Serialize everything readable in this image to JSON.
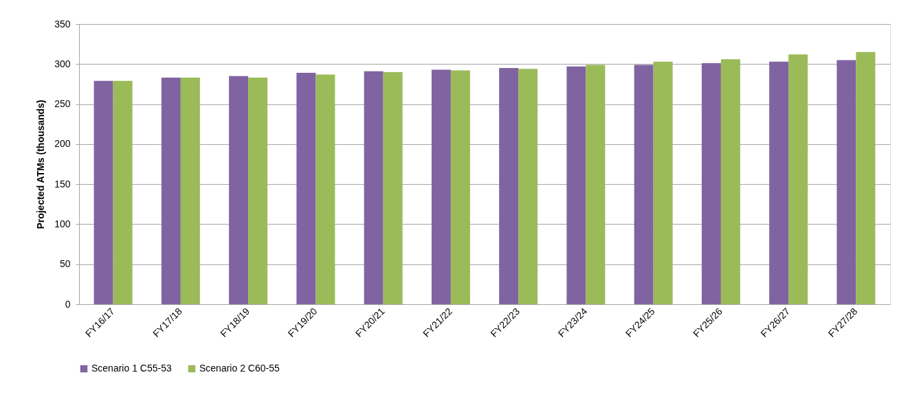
{
  "chart_data": {
    "type": "bar",
    "ylabel": "Projected ATMs (thousands)",
    "categories": [
      "FY16/17",
      "FY17/18",
      "FY18/19",
      "FY19/20",
      "FY20/21",
      "FY21/22",
      "FY22/23",
      "FY23/24",
      "FY24/25",
      "FY25/26",
      "FY26/27",
      "FY27/28"
    ],
    "series": [
      {
        "name": "Scenario 1 C55-53",
        "color": "#8064a2",
        "values": [
          279,
          283,
          285,
          289,
          291,
          293,
          295,
          297,
          299,
          301,
          303,
          305
        ]
      },
      {
        "name": "Scenario 2 C60-55",
        "color": "#9bbb59",
        "values": [
          279,
          283,
          283,
          287,
          290,
          292,
          294,
          299,
          303,
          306,
          312,
          315
        ]
      }
    ],
    "ylim": [
      0,
      350
    ],
    "yticks": [
      0,
      50,
      100,
      150,
      200,
      250,
      300,
      350
    ],
    "grid": "y",
    "legend": "bottom"
  }
}
